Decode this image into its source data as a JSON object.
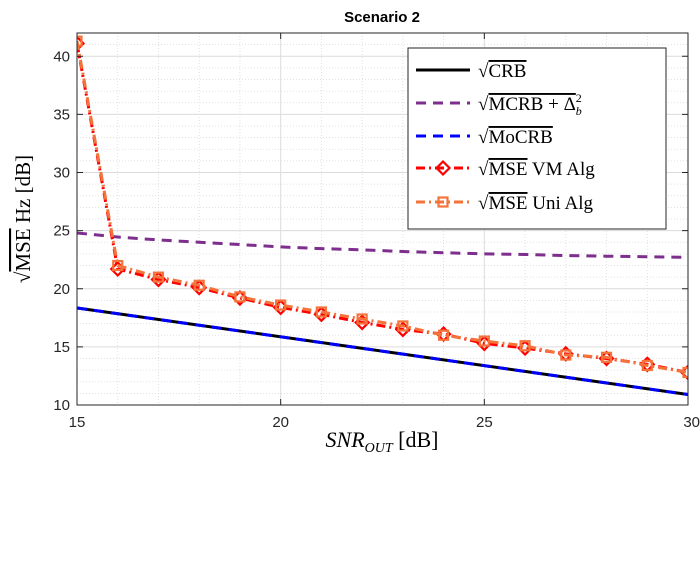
{
  "chart_data": {
    "type": "line",
    "title": "Scenario 2",
    "xlabel": "SNR_OUT [dB]",
    "ylabel": "√MSE Hz [dB]",
    "xlim": [
      15,
      30
    ],
    "ylim": [
      10,
      42
    ],
    "grid": "on (major solid, minor dotted)",
    "legend_position": "top-right",
    "x_ticks": [
      "15",
      "20",
      "25",
      "30"
    ],
    "y_ticks": [
      "10",
      "15",
      "20",
      "25",
      "30",
      "35",
      "40"
    ],
    "series": [
      {
        "name": "√CRB",
        "color": "#000000",
        "style": "solid",
        "x": [
          15,
          30
        ],
        "y": [
          18.35,
          10.9
        ]
      },
      {
        "name": "√MCRB + Δ_b^2",
        "color": "#7e2f8e",
        "style": "dashed",
        "x": [
          15,
          16,
          17,
          18,
          19,
          20,
          21,
          22,
          23,
          24,
          25,
          26,
          27,
          28,
          29,
          30
        ],
        "y": [
          24.8,
          24.45,
          24.2,
          24.0,
          23.8,
          23.6,
          23.45,
          23.35,
          23.2,
          23.1,
          23.0,
          22.95,
          22.85,
          22.8,
          22.75,
          22.7
        ]
      },
      {
        "name": "√MoCRB",
        "color": "#0000ff",
        "style": "dashed",
        "x": [
          15,
          30
        ],
        "y": [
          18.35,
          10.9
        ]
      },
      {
        "name": "√MSE VM Alg",
        "color": "#ff0000",
        "style": "dash-dot",
        "marker": "diamond",
        "x": [
          15,
          16,
          17,
          18,
          19,
          20,
          21,
          22,
          23,
          24,
          25,
          26,
          27,
          28,
          29,
          30
        ],
        "y": [
          41.1,
          21.7,
          20.8,
          20.1,
          19.2,
          18.4,
          17.8,
          17.1,
          16.5,
          16.1,
          15.3,
          14.9,
          14.4,
          14.0,
          13.5,
          12.8
        ]
      },
      {
        "name": "√MSE Uni Alg",
        "color": "#f4733a",
        "style": "dash-dot",
        "marker": "square",
        "x": [
          15,
          16,
          17,
          18,
          19,
          20,
          21,
          22,
          23,
          24,
          25,
          26,
          27,
          28,
          29,
          30
        ],
        "y": [
          41.3,
          22.0,
          21.0,
          20.3,
          19.3,
          18.6,
          18.0,
          17.4,
          16.8,
          16.0,
          15.5,
          15.1,
          14.3,
          14.1,
          13.4,
          12.8
        ]
      }
    ]
  }
}
